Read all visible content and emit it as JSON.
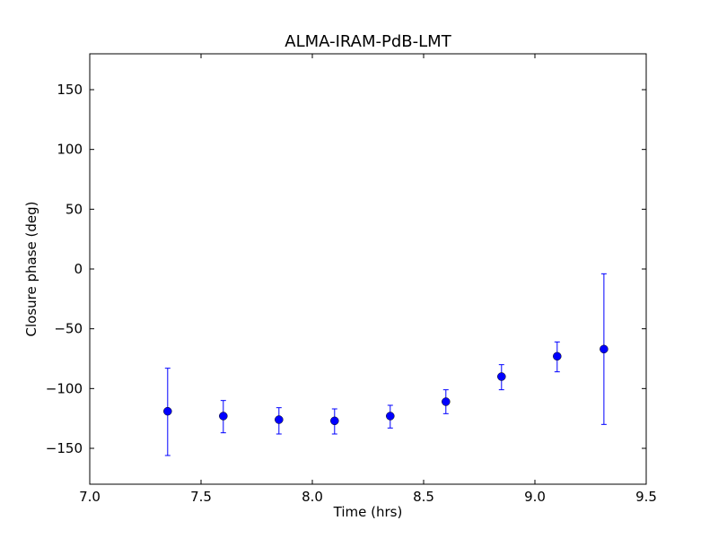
{
  "chart_data": {
    "type": "scatter",
    "title": "ALMA-IRAM-PdB-LMT",
    "xlabel": "Time (hrs)",
    "ylabel": "Closure phase (deg)",
    "xlim": [
      7.0,
      9.5
    ],
    "ylim": [
      -180,
      180
    ],
    "xticks": [
      7.0,
      7.5,
      8.0,
      8.5,
      9.0,
      9.5
    ],
    "xtick_labels": [
      "7.0",
      "7.5",
      "8.0",
      "8.5",
      "9.0",
      "9.5"
    ],
    "yticks": [
      150,
      100,
      50,
      0,
      -50,
      -100,
      -150
    ],
    "ytick_labels": [
      "150",
      "100",
      "50",
      "0",
      "−50",
      "−100",
      "−150"
    ],
    "grid": false,
    "marker_color": "#0000ff",
    "series": [
      {
        "x": [
          7.35,
          7.6,
          7.85,
          8.1,
          8.35,
          8.6,
          8.85,
          9.1,
          9.31
        ],
        "y": [
          -119,
          -123,
          -126,
          -127,
          -123,
          -111,
          -90,
          -73,
          -67
        ],
        "y_lower": [
          -156,
          -137,
          -138,
          -138,
          -133,
          -121,
          -101,
          -86,
          -130
        ],
        "y_upper": [
          -83,
          -110,
          -116,
          -117,
          -114,
          -101,
          -80,
          -61,
          -4
        ]
      }
    ]
  }
}
